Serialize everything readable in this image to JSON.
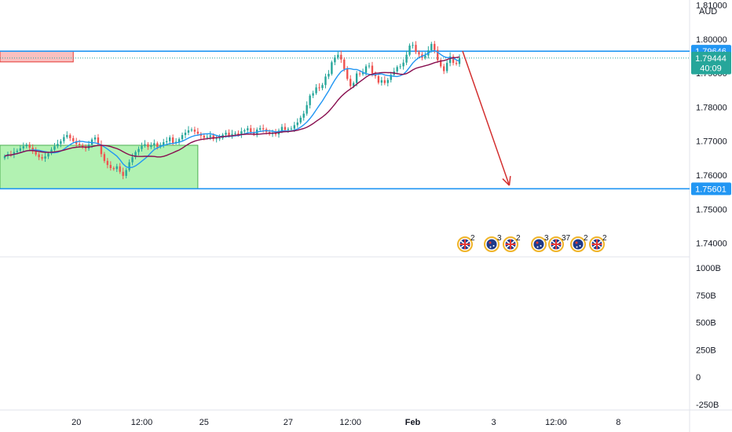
{
  "currency_label": "AUD",
  "colors": {
    "up_candle": "#26a69a",
    "down_candle": "#ef5350",
    "ma_fast": "#2196f3",
    "ma_slow": "#880e4f",
    "level_line": "#2196f3",
    "support_zone": "#a5f0a5",
    "resistance_zone": "#f9b0b0",
    "arrow": "#d32f2f",
    "countdown_badge": "#26a69a"
  },
  "chart_data": [
    {
      "type": "candlestick",
      "title": "",
      "price_axis": {
        "range": [
          1.736,
          1.8115
        ],
        "ticks": [
          "1.81000",
          "1.80000",
          "1.79000",
          "1.78000",
          "1.77000",
          "1.76000",
          "1.75000",
          "1.74000"
        ],
        "tick_values": [
          1.81,
          1.8,
          1.79,
          1.78,
          1.77,
          1.76,
          1.75,
          1.74
        ]
      },
      "x_axis": {
        "labels": [
          "20",
          "12:00",
          "25",
          "27",
          "12:00",
          "Feb",
          "3",
          "12:00",
          "8"
        ],
        "label_index": [
          23,
          44,
          64,
          91,
          111,
          131,
          157,
          177,
          197
        ]
      },
      "price_labels": [
        {
          "name": "resistance-level",
          "value": 1.79646,
          "text": "1.79646",
          "style": "blue"
        },
        {
          "name": "current-price",
          "value": 1.79444,
          "text": "1.79444",
          "style": "teal"
        },
        {
          "name": "countdown",
          "value": 1.7915,
          "text": "40:09",
          "style": "teal"
        },
        {
          "name": "support-level",
          "value": 1.75601,
          "text": "1.75601",
          "style": "blue"
        }
      ],
      "horizontal_levels": [
        1.79646,
        1.75601
      ],
      "current_price": 1.79444,
      "zones": [
        {
          "name": "support-zone",
          "start_index": 0,
          "end_index": 62,
          "top": 1.7688,
          "bottom": 1.756
        },
        {
          "name": "resistance-zone",
          "start_index": 0,
          "end_index": 22,
          "top": 1.7965,
          "bottom": 1.7933
        }
      ],
      "arrow": {
        "from_index": 147,
        "from_value": 1.7965,
        "to_index": 162,
        "to_value": 1.757
      },
      "closes": [
        1.7656,
        1.7662,
        1.766,
        1.7668,
        1.7672,
        1.7679,
        1.7685,
        1.769,
        1.7681,
        1.767,
        1.7661,
        1.7653,
        1.7649,
        1.7655,
        1.7664,
        1.7675,
        1.7685,
        1.7692,
        1.77,
        1.7712,
        1.7718,
        1.7709,
        1.77,
        1.7692,
        1.7688,
        1.7682,
        1.7678,
        1.769,
        1.7705,
        1.7711,
        1.769,
        1.7662,
        1.7642,
        1.763,
        1.7621,
        1.7618,
        1.7626,
        1.761,
        1.7598,
        1.7615,
        1.7638,
        1.7653,
        1.7668,
        1.7677,
        1.7686,
        1.7691,
        1.7683,
        1.7688,
        1.7694,
        1.7683,
        1.7689,
        1.7697,
        1.77,
        1.7711,
        1.7695,
        1.7698,
        1.7706,
        1.7718,
        1.7725,
        1.7732,
        1.7734,
        1.7728,
        1.7722,
        1.7716,
        1.771,
        1.7712,
        1.7717,
        1.7706,
        1.7708,
        1.7709,
        1.7719,
        1.7725,
        1.7717,
        1.7721,
        1.7723,
        1.7718,
        1.7729,
        1.7732,
        1.7738,
        1.7727,
        1.772,
        1.7734,
        1.7738,
        1.7735,
        1.7727,
        1.7721,
        1.7724,
        1.772,
        1.7731,
        1.7742,
        1.7733,
        1.7736,
        1.7737,
        1.7747,
        1.7755,
        1.7769,
        1.7781,
        1.7806,
        1.7834,
        1.7841,
        1.7858,
        1.7856,
        1.7865,
        1.789,
        1.7898,
        1.7932,
        1.7946,
        1.7954,
        1.794,
        1.7912,
        1.7883,
        1.7862,
        1.7871,
        1.7899,
        1.7897,
        1.7901,
        1.792,
        1.7922,
        1.79,
        1.7891,
        1.7872,
        1.7879,
        1.7871,
        1.788,
        1.7895,
        1.7905,
        1.7918,
        1.792,
        1.7931,
        1.7954,
        1.7981,
        1.7983,
        1.7962,
        1.7955,
        1.7945,
        1.7952,
        1.7967,
        1.7986,
        1.7968,
        1.7938,
        1.792,
        1.7906,
        1.793,
        1.7949,
        1.793,
        1.7927,
        1.7944
      ]
    },
    {
      "type": "bar",
      "title": "",
      "y_axis": {
        "range": [
          -300,
          1100
        ],
        "ticks": [
          "1000B",
          "750B",
          "500B",
          "250B",
          "0",
          "-250B"
        ],
        "tick_values": [
          1000,
          750,
          500,
          250,
          0,
          -250
        ]
      }
    }
  ],
  "events": [
    {
      "flag": "uk",
      "count": "2"
    },
    {
      "flag": "au",
      "count": "3"
    },
    {
      "flag": "uk",
      "count": "2"
    },
    {
      "flag": "au",
      "count": "3"
    },
    {
      "flag": "uk",
      "count": "37"
    },
    {
      "flag": "au",
      "count": "2"
    },
    {
      "flag": "uk",
      "count": "2"
    }
  ]
}
